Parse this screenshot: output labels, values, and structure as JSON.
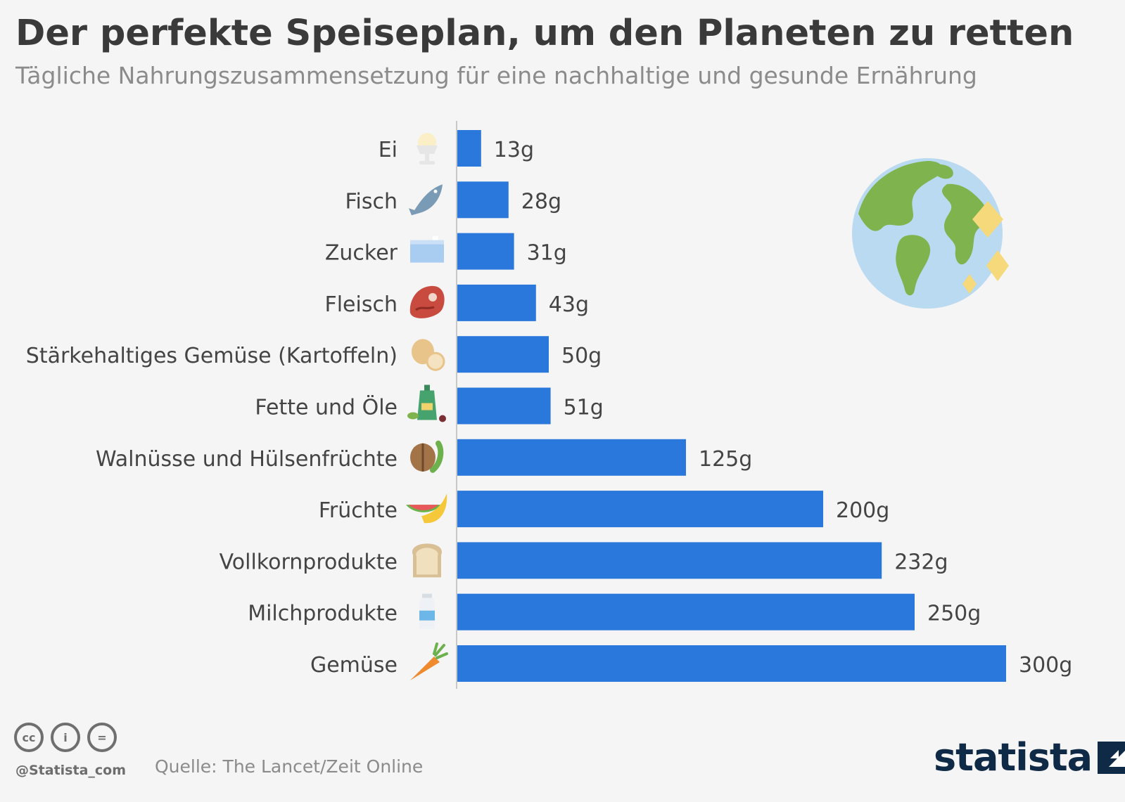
{
  "chart_data": {
    "type": "bar",
    "orientation": "horizontal",
    "title": "Der perfekte Speiseplan, um den Planeten zu retten",
    "subtitle": "Tägliche Nahrungszusammensetzung für eine nachhaltige und gesunde Ernährung",
    "categories": [
      "Ei",
      "Fisch",
      "Zucker",
      "Fleisch",
      "Stärkehaltiges Gemüse (Kartoffeln)",
      "Fette und Öle",
      "Walnüsse und Hülsenfrüchte",
      "Früchte",
      "Vollkornprodukte",
      "Milchprodukte",
      "Gemüse"
    ],
    "values": [
      13,
      28,
      31,
      43,
      50,
      51,
      125,
      200,
      232,
      250,
      300
    ],
    "value_labels": [
      "13g",
      "28g",
      "31g",
      "43g",
      "50g",
      "51g",
      "125g",
      "200g",
      "232g",
      "250g",
      "300g"
    ],
    "icons": [
      "egg-cup-icon",
      "fish-icon",
      "sugar-box-icon",
      "meat-steak-icon",
      "potato-icon",
      "oil-bottle-icon",
      "walnut-bean-icon",
      "watermelon-banana-icon",
      "bread-toast-icon",
      "milk-bottle-icon",
      "carrot-icon"
    ],
    "xlim": [
      0,
      300
    ],
    "grid": false,
    "legend": "none",
    "bar_color": "#2a78dc"
  },
  "footer": {
    "handle": "@Statista_com",
    "source": "Quelle: The Lancet/Zeit Online",
    "brand": "statista",
    "license_icons": [
      "cc-icon",
      "attribution-icon",
      "no-derivatives-icon"
    ],
    "license_glyphs": [
      "cc",
      "i",
      "="
    ]
  },
  "decoration": {
    "illustration": "globe-sparkle-icon"
  }
}
